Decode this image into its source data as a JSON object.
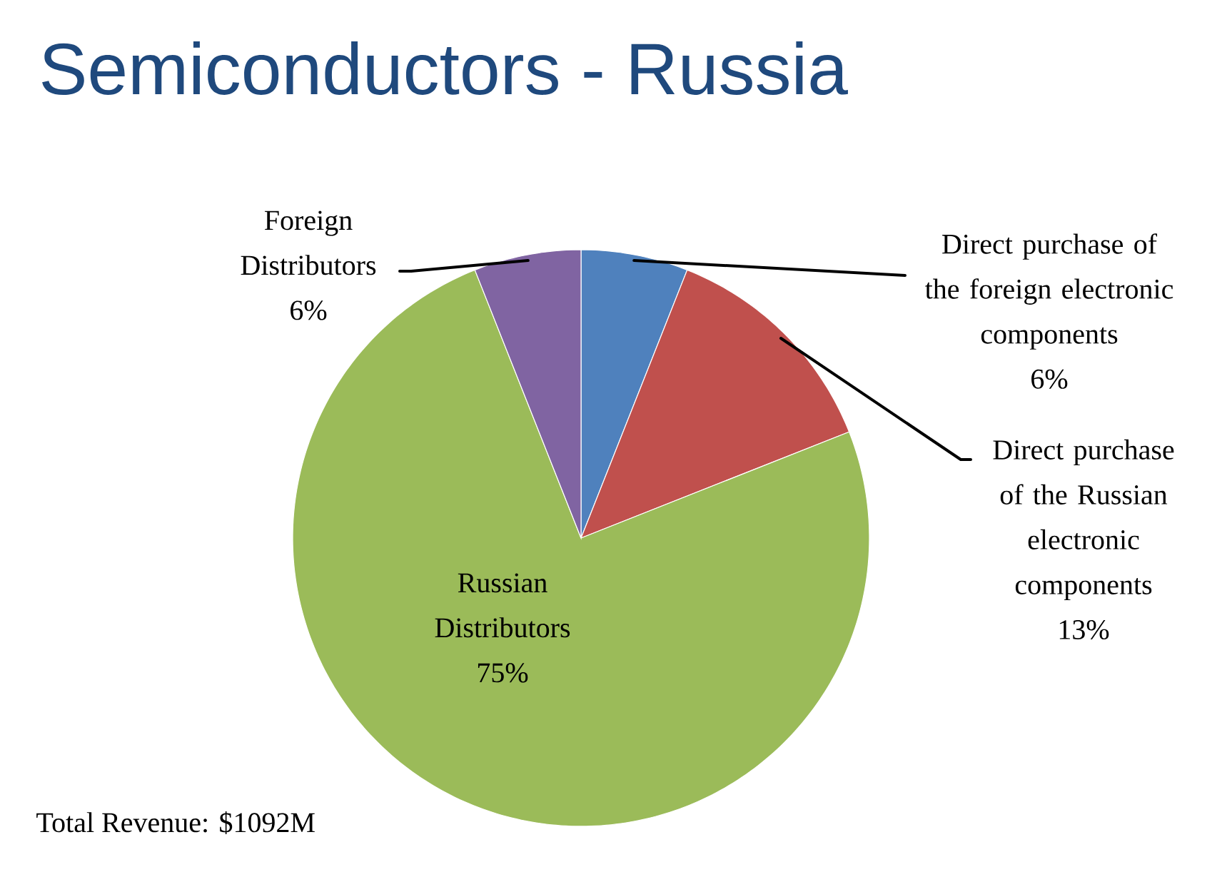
{
  "chart_data": {
    "type": "pie",
    "title": "Semiconductors - Russia",
    "categories": [
      "Direct purchase of the foreign electronic components",
      "Direct purchase of the Russian electronic components",
      "Russian Distributors",
      "Foreign Distributors"
    ],
    "values": [
      6,
      13,
      75,
      6
    ],
    "value_labels": [
      "6%",
      "13%",
      "75%",
      "6%"
    ],
    "colors": [
      "#4F81BD",
      "#C0504D",
      "#9BBB59",
      "#8064A2"
    ],
    "annotations": [
      "Total Revenue: $1092M"
    ]
  }
}
